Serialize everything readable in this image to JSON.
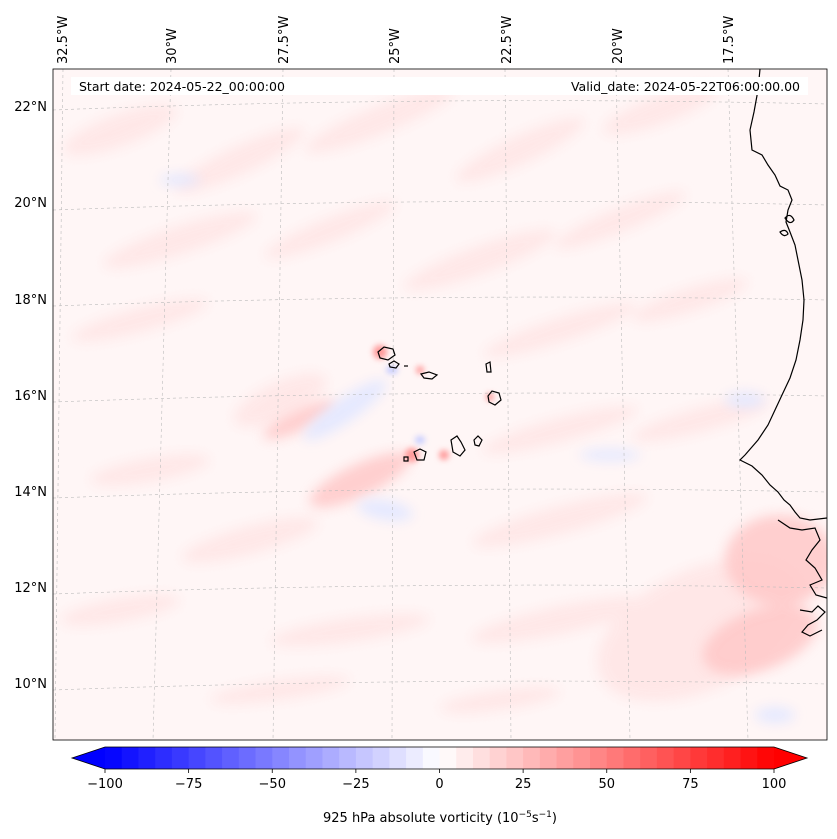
{
  "map": {
    "header": {
      "start_date": "Start date: 2024-05-22_00:00:00",
      "valid_date": "Valid_date: 2024-05-22T06:00:00.00"
    },
    "lon_labels": [
      "32.5°W",
      "30°W",
      "27.5°W",
      "25°W",
      "22.5°W",
      "20°W",
      "17.5°W"
    ],
    "lat_labels": [
      "22°N",
      "20°N",
      "18°N",
      "16°N",
      "14°N",
      "12°N",
      "10°N"
    ],
    "field": "925 hPa absolute vorticity",
    "colorbar": {
      "label": "925 hPa absolute vorticity (10",
      "label_exp1": "−5",
      "label_mid": "s",
      "label_exp2": "−1",
      "label_end": ")",
      "ticks": [
        "−100",
        "−75",
        "−50",
        "−25",
        "0",
        "25",
        "50",
        "75",
        "100"
      ],
      "min": -100,
      "max": 100,
      "colormap": "bwr",
      "color_min": "#0000ff",
      "color_mid": "#ffffff",
      "color_max": "#ff0000",
      "extend": "both"
    }
  }
}
